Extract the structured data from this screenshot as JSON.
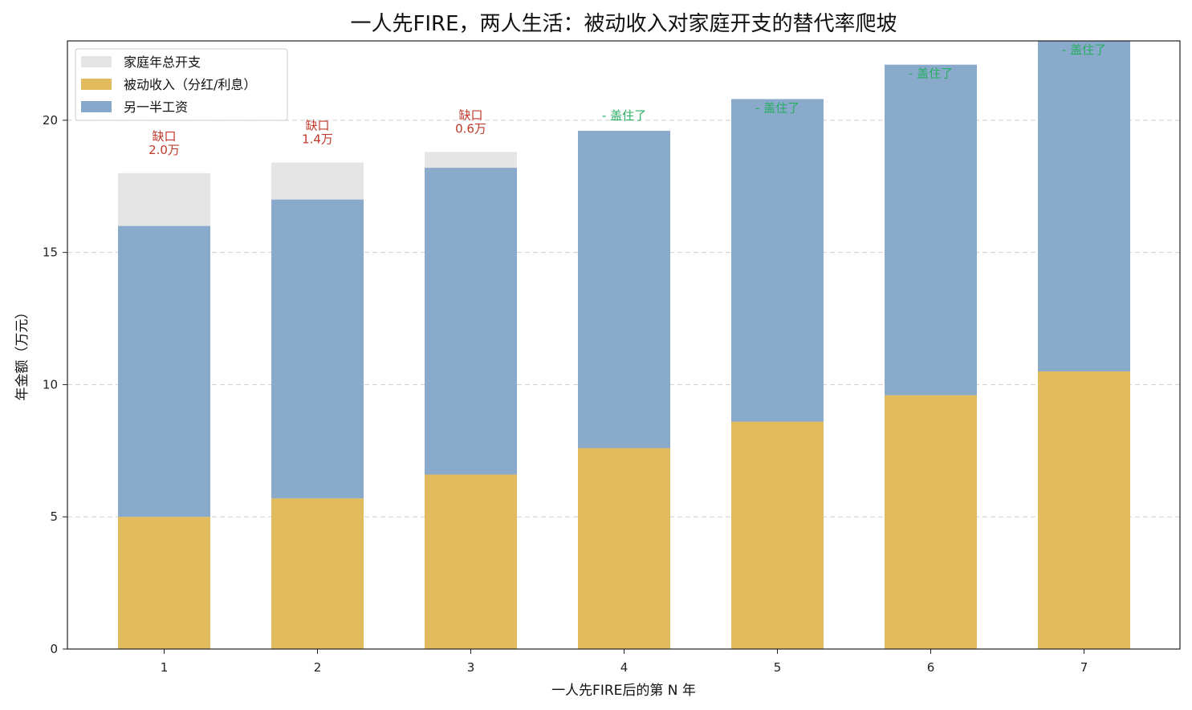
{
  "chart_data": {
    "type": "bar",
    "title": "一人先FIRE，两人生活：被动收入对家庭开支的替代率爬坡",
    "xlabel": "一人先FIRE后的第 N 年",
    "ylabel": "年金额（万元）",
    "categories": [
      "1",
      "2",
      "3",
      "4",
      "5",
      "6",
      "7"
    ],
    "ylim": [
      0,
      23
    ],
    "yticks": [
      0,
      5,
      10,
      15,
      20
    ],
    "grid": "y-dashed",
    "legend_position": "top-left",
    "series": [
      {
        "name": "家庭年总开支",
        "values": [
          18.0,
          18.4,
          18.8,
          19.5,
          20.8,
          22.1,
          23.5
        ],
        "color": "#e5e5e5"
      },
      {
        "name": "被动收入（分红/利息）",
        "values": [
          5.0,
          5.7,
          6.6,
          7.6,
          8.6,
          9.6,
          10.5
        ],
        "color": "#e1bb5e"
      },
      {
        "name": "另一半工资",
        "values": [
          11.0,
          11.3,
          11.6,
          12.0,
          12.2,
          12.5,
          13.0
        ],
        "color": "#88a8cb"
      }
    ],
    "annotations": [
      {
        "line1": "缺口",
        "line2": "2.0万",
        "color": "#c0392b"
      },
      {
        "line1": "缺口",
        "line2": "1.4万",
        "color": "#c0392b"
      },
      {
        "line1": "缺口",
        "line2": "0.6万",
        "color": "#c0392b"
      },
      {
        "line1": "- 盖住了",
        "line2": "",
        "color": "#27ae60"
      },
      {
        "line1": "- 盖住了",
        "line2": "",
        "color": "#27ae60"
      },
      {
        "line1": "- 盖住了",
        "line2": "",
        "color": "#27ae60"
      },
      {
        "line1": "- 盖住了",
        "line2": "",
        "color": "#27ae60"
      }
    ]
  }
}
